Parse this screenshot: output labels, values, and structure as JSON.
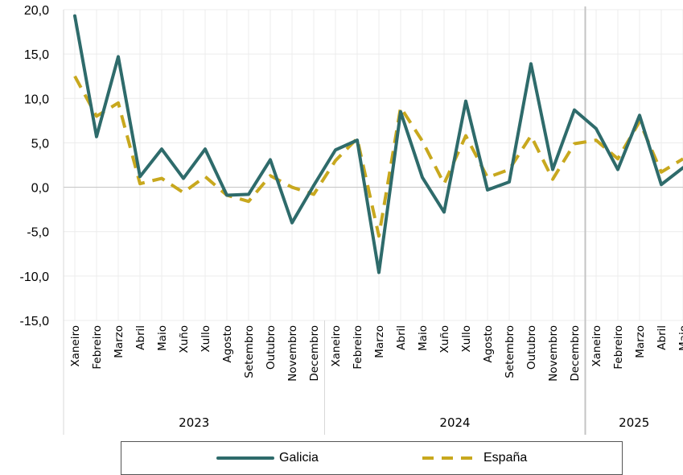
{
  "chart_data": {
    "type": "line",
    "title": "",
    "xlabel": "",
    "ylabel": "",
    "ylim": [
      -15,
      20
    ],
    "yticks": [
      "20,0",
      "15,0",
      "10,0",
      "5,0",
      "0,0",
      "-5,0",
      "-10,0",
      "-15,0"
    ],
    "grid": true,
    "legend_position": "bottom",
    "years": [
      {
        "label": "2023",
        "months": 12
      },
      {
        "label": "2024",
        "months": 12
      },
      {
        "label": "2025",
        "months": 5
      }
    ],
    "categories": [
      "Xaneiro",
      "Febreiro",
      "Marzo",
      "Abril",
      "Maio",
      "Xuño",
      "Xullo",
      "Agosto",
      "Setembro",
      "Outubro",
      "Novembro",
      "Decembro",
      "Xaneiro",
      "Febreiro",
      "Marzo",
      "Abril",
      "Maio",
      "Xuño",
      "Xullo",
      "Agosto",
      "Setembro",
      "Outubro",
      "Novembro",
      "Decembro",
      "Xaneiro",
      "Febreiro",
      "Marzo",
      "Abril",
      "Maio"
    ],
    "series": [
      {
        "name": "Galicia",
        "color": "#2e6b6b",
        "style": "solid",
        "values": [
          19.3,
          5.7,
          14.7,
          1.2,
          4.3,
          1.0,
          4.3,
          -0.9,
          -0.8,
          3.1,
          -4.0,
          0.2,
          4.2,
          5.3,
          -9.6,
          8.5,
          1.1,
          -2.8,
          9.7,
          -0.3,
          0.6,
          13.9,
          2.0,
          8.7,
          6.6,
          2.0,
          8.1,
          0.3,
          2.2
        ]
      },
      {
        "name": "España",
        "color": "#c8a81e",
        "style": "dashed",
        "values": [
          12.5,
          8.0,
          9.5,
          0.4,
          1.0,
          -0.6,
          1.2,
          -0.9,
          -1.6,
          1.3,
          0.0,
          -0.8,
          3.0,
          5.5,
          -5.5,
          9.0,
          5.2,
          0.4,
          5.8,
          1.1,
          2.0,
          5.8,
          0.9,
          4.9,
          5.3,
          3.2,
          7.4,
          1.7,
          3.2
        ]
      }
    ]
  }
}
